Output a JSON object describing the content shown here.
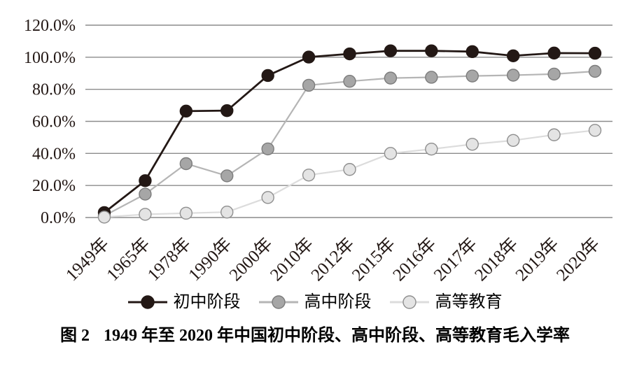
{
  "figure": {
    "label": "图 2",
    "caption": "1949 年至 2020 年中国初中阶段、高中阶段、高等教育毛入学率"
  },
  "colors": {
    "background": "#ffffff",
    "text": "#231815",
    "gridline": "#8c8c8c"
  },
  "chart_data": {
    "type": "line",
    "title": "图 2 1949 年至 2020 年中国初中阶段、高中阶段、高等教育毛入学率",
    "xlabel": "",
    "ylabel": "",
    "ylim": [
      0,
      120
    ],
    "y_tick_step": 20,
    "y_tick_labels": [
      "0.0%",
      "20.0%",
      "40.0%",
      "60.0%",
      "80.0%",
      "100.0%",
      "120.0%"
    ],
    "grid": "horizontal",
    "legend_position": "bottom",
    "categories": [
      "1949年",
      "1965年",
      "1978年",
      "1990年",
      "2000年",
      "2010年",
      "2012年",
      "2015年",
      "2016年",
      "2017年",
      "2018年",
      "2019年",
      "2020年"
    ],
    "series": [
      {
        "name": "初中阶段",
        "values": [
          3.1,
          23.0,
          66.4,
          66.7,
          88.6,
          100.1,
          102.1,
          104.0,
          104.0,
          103.5,
          100.9,
          102.6,
          102.5
        ],
        "line_color": "#231815",
        "marker_fill": "#231815",
        "marker_stroke": "#231815"
      },
      {
        "name": "高中阶段",
        "values": [
          1.1,
          14.6,
          33.6,
          26.0,
          42.8,
          82.5,
          85.0,
          87.0,
          87.5,
          88.3,
          88.8,
          89.5,
          91.2
        ],
        "line_color": "#b5b5b5",
        "marker_fill": "#a6a6a6",
        "marker_stroke": "#7c7c7c"
      },
      {
        "name": "高等教育",
        "values": [
          0.26,
          2.0,
          2.7,
          3.4,
          12.5,
          26.5,
          30.0,
          40.0,
          42.7,
          45.7,
          48.1,
          51.6,
          54.4
        ],
        "line_color": "#dcdcdc",
        "marker_fill": "#e4e4e4",
        "marker_stroke": "#8f8f8f"
      }
    ]
  }
}
